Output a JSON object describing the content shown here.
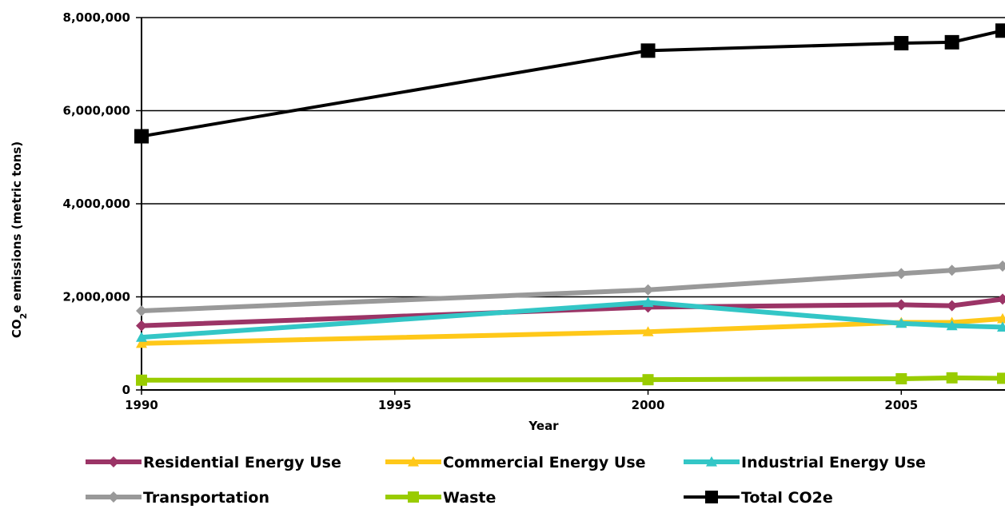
{
  "chart_data": {
    "type": "line",
    "title": "",
    "xlabel": "Year",
    "ylabel": "CO2e emissions (metric tons)",
    "ylabel_parts": {
      "pre": "CO",
      "sub": "2",
      "post": "e  emissions (metric tons)"
    },
    "xlim": [
      1990,
      2007
    ],
    "ylim": [
      0,
      8000000
    ],
    "x_ticks": [
      {
        "value": 1990,
        "label": "1990"
      },
      {
        "value": 1995,
        "label": "1995"
      },
      {
        "value": 2000,
        "label": "2000"
      },
      {
        "value": 2005,
        "label": "2005"
      }
    ],
    "y_ticks": [
      {
        "value": 0,
        "label": "0"
      },
      {
        "value": 2000000,
        "label": "2,000,000"
      },
      {
        "value": 4000000,
        "label": "4,000,000"
      },
      {
        "value": 6000000,
        "label": "6,000,000"
      },
      {
        "value": 8000000,
        "label": "8,000,000"
      }
    ],
    "grid": true,
    "legend_position": "bottom",
    "x": [
      1990,
      2000,
      2005,
      2006,
      2007
    ],
    "series": [
      {
        "name": "Residential Energy Use",
        "color": "#9b3466",
        "marker": "diamond",
        "values": [
          1380000,
          1780000,
          1830000,
          1810000,
          1950000
        ]
      },
      {
        "name": "Commercial Energy Use",
        "color": "#ffc819",
        "marker": "triangle",
        "values": [
          1000000,
          1250000,
          1450000,
          1450000,
          1530000
        ]
      },
      {
        "name": "Industrial Energy Use",
        "color": "#33c6c6",
        "marker": "triangle",
        "values": [
          1130000,
          1880000,
          1430000,
          1380000,
          1350000
        ]
      },
      {
        "name": "Transportation",
        "color": "#999999",
        "marker": "diamond",
        "values": [
          1700000,
          2150000,
          2500000,
          2570000,
          2660000
        ]
      },
      {
        "name": "Waste",
        "color": "#99cc00",
        "marker": "square",
        "values": [
          210000,
          220000,
          240000,
          260000,
          250000
        ]
      },
      {
        "name": "Total CO2e",
        "color": "#000000",
        "marker": "square",
        "values": [
          5450000,
          7290000,
          7450000,
          7470000,
          7720000
        ]
      }
    ]
  }
}
